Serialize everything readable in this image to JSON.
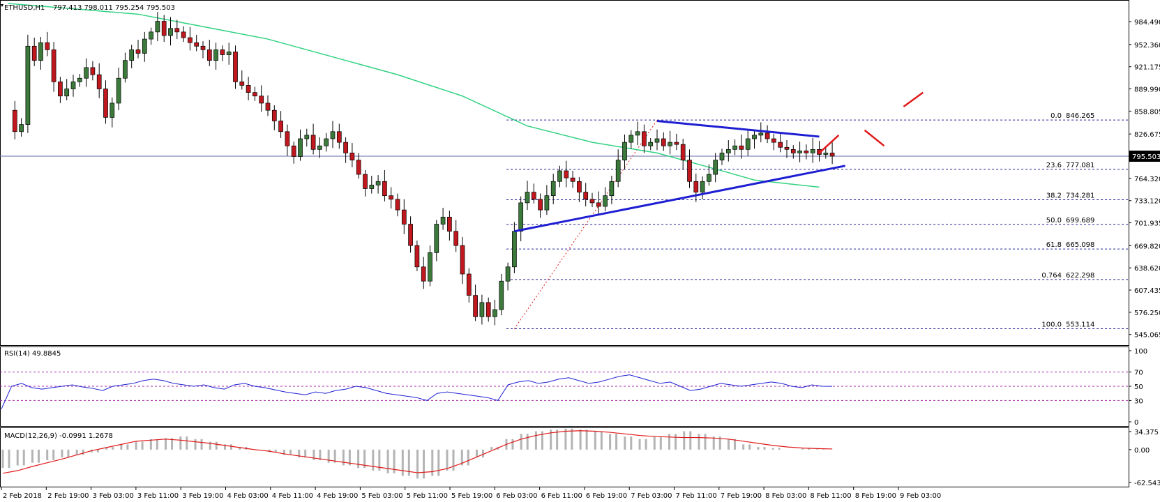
{
  "header": {
    "symbol": "ETHUSD,H1",
    "ohlc": "797.413 798.011 795.254 795.503"
  },
  "price_badge": "795.503",
  "colors": {
    "bull": "#3c7a3c",
    "bear": "#c0181e",
    "ma": "#32d282",
    "trendline": "#1e1ed2",
    "fib": "#1e1e96",
    "projection": "#e01818",
    "rsi_line": "#1e1ed2",
    "rsi_level": "#aa2aaa",
    "macd_hist": "#b4b4b4",
    "macd_signal": "#e01818",
    "grid": "#000000"
  },
  "chart_data": [
    {
      "type": "candlestick",
      "title": "ETHUSD,H1",
      "ylim": [
        535,
        1010
      ],
      "y_ticks": [
        "984.490",
        "952.360",
        "921.175",
        "889.990",
        "858.805",
        "826.675",
        "795.503",
        "764.320",
        "733.120",
        "701.935",
        "669.820",
        "638.620",
        "607.435",
        "576.250",
        "545.065"
      ],
      "x_ticks": [
        "2 Feb 2018",
        "2 Feb 19:00",
        "3 Feb 03:00",
        "3 Feb 11:00",
        "3 Feb 19:00",
        "4 Feb 03:00",
        "4 Feb 11:00",
        "4 Feb 19:00",
        "5 Feb 03:00",
        "5 Feb 11:00",
        "5 Feb 19:00",
        "6 Feb 03:00",
        "6 Feb 11:00",
        "6 Feb 19:00",
        "7 Feb 03:00",
        "7 Feb 11:00",
        "7 Feb 19:00",
        "8 Feb 03:00",
        "8 Feb 11:00",
        "8 Feb 19:00",
        "9 Feb 03:00"
      ],
      "last_price": 795.503,
      "close_path": [
        [
          0,
          860
        ],
        [
          1,
          830
        ],
        [
          2,
          840
        ],
        [
          3,
          950
        ],
        [
          4,
          930
        ],
        [
          5,
          955
        ],
        [
          6,
          945
        ],
        [
          7,
          900
        ],
        [
          8,
          880
        ],
        [
          9,
          890
        ],
        [
          10,
          900
        ],
        [
          11,
          905
        ],
        [
          12,
          920
        ],
        [
          13,
          910
        ],
        [
          14,
          890
        ],
        [
          15,
          850
        ],
        [
          16,
          870
        ],
        [
          17,
          905
        ],
        [
          18,
          930
        ],
        [
          19,
          945
        ],
        [
          20,
          940
        ],
        [
          21,
          960
        ],
        [
          22,
          970
        ],
        [
          23,
          985
        ],
        [
          24,
          965
        ],
        [
          25,
          975
        ],
        [
          26,
          970
        ],
        [
          27,
          962
        ],
        [
          28,
          955
        ],
        [
          29,
          950
        ],
        [
          30,
          945
        ],
        [
          31,
          930
        ],
        [
          32,
          945
        ],
        [
          33,
          938
        ],
        [
          34,
          942
        ],
        [
          35,
          900
        ],
        [
          36,
          895
        ],
        [
          37,
          885
        ],
        [
          38,
          880
        ],
        [
          39,
          870
        ],
        [
          40,
          860
        ],
        [
          41,
          845
        ],
        [
          42,
          830
        ],
        [
          43,
          810
        ],
        [
          44,
          795
        ],
        [
          45,
          820
        ],
        [
          46,
          825
        ],
        [
          47,
          805
        ],
        [
          48,
          810
        ],
        [
          49,
          820
        ],
        [
          50,
          830
        ],
        [
          51,
          815
        ],
        [
          52,
          800
        ],
        [
          53,
          790
        ],
        [
          54,
          770
        ],
        [
          55,
          750
        ],
        [
          56,
          755
        ],
        [
          57,
          760
        ],
        [
          58,
          740
        ],
        [
          59,
          735
        ],
        [
          60,
          720
        ],
        [
          61,
          700
        ],
        [
          62,
          670
        ],
        [
          63,
          640
        ],
        [
          64,
          620
        ],
        [
          65,
          660
        ],
        [
          66,
          700
        ],
        [
          67,
          710
        ],
        [
          68,
          690
        ],
        [
          69,
          670
        ],
        [
          70,
          630
        ],
        [
          71,
          600
        ],
        [
          72,
          570
        ],
        [
          73,
          590
        ],
        [
          74,
          570
        ],
        [
          75,
          580
        ],
        [
          76,
          620
        ],
        [
          77,
          640
        ],
        [
          78,
          690
        ],
        [
          79,
          730
        ],
        [
          80,
          745
        ],
        [
          81,
          735
        ],
        [
          82,
          720
        ],
        [
          83,
          740
        ],
        [
          84,
          760
        ],
        [
          85,
          775
        ],
        [
          86,
          765
        ],
        [
          87,
          760
        ],
        [
          88,
          745
        ],
        [
          89,
          735
        ],
        [
          90,
          730
        ],
        [
          91,
          725
        ],
        [
          92,
          740
        ],
        [
          93,
          760
        ],
        [
          94,
          790
        ],
        [
          95,
          815
        ],
        [
          96,
          825
        ],
        [
          97,
          830
        ],
        [
          98,
          810
        ],
        [
          99,
          815
        ],
        [
          100,
          820
        ],
        [
          101,
          810
        ],
        [
          102,
          815
        ],
        [
          103,
          812
        ],
        [
          104,
          790
        ],
        [
          105,
          760
        ],
        [
          106,
          745
        ],
        [
          107,
          760
        ],
        [
          108,
          770
        ],
        [
          109,
          790
        ],
        [
          110,
          800
        ],
        [
          111,
          805
        ],
        [
          112,
          810
        ],
        [
          113,
          805
        ],
        [
          114,
          820
        ],
        [
          115,
          825
        ],
        [
          116,
          828
        ],
        [
          117,
          820
        ],
        [
          118,
          815
        ],
        [
          119,
          808
        ],
        [
          120,
          805
        ],
        [
          121,
          800
        ],
        [
          122,
          803
        ],
        [
          123,
          800
        ],
        [
          124,
          805
        ],
        [
          125,
          798
        ],
        [
          126,
          800
        ],
        [
          127,
          795.5
        ]
      ],
      "moving_average": [
        [
          0,
          1010
        ],
        [
          20,
          995
        ],
        [
          40,
          960
        ],
        [
          60,
          910
        ],
        [
          70,
          880
        ],
        [
          80,
          838
        ],
        [
          90,
          815
        ],
        [
          100,
          800
        ],
        [
          110,
          775
        ],
        [
          115,
          762
        ],
        [
          125,
          752
        ]
      ],
      "trendlines": [
        {
          "name": "resistance",
          "from": [
            100,
            845
          ],
          "to": [
            125,
            823
          ]
        },
        {
          "name": "support",
          "from": [
            78,
            690
          ],
          "to": [
            129,
            782
          ]
        }
      ],
      "fibonacci": [
        {
          "ratio": "0.0",
          "price": "846.265"
        },
        {
          "ratio": "23.6",
          "price": "777.081"
        },
        {
          "ratio": "38.2",
          "price": "734.281"
        },
        {
          "ratio": "50.0",
          "price": "699.689"
        },
        {
          "ratio": "61.8",
          "price": "665.098"
        },
        {
          "ratio": "0.764",
          "price": "622.298"
        },
        {
          "ratio": "100.0",
          "price": "553.114"
        }
      ],
      "projection_path": [
        [
          125,
          800
        ],
        [
          128,
          825
        ],
        [
          132,
          832
        ],
        [
          135,
          810
        ],
        [
          138,
          865
        ],
        [
          141,
          885
        ]
      ]
    },
    {
      "type": "line",
      "title": "RSI(14) 49.8845",
      "ylim": [
        0,
        100
      ],
      "y_ticks": [
        "100",
        "70",
        "50",
        "30",
        "0"
      ],
      "levels": [
        70,
        50,
        30
      ],
      "values": [
        18,
        50,
        54,
        48,
        46,
        48,
        50,
        52,
        49,
        47,
        44,
        50,
        52,
        54,
        58,
        60,
        58,
        54,
        52,
        50,
        52,
        48,
        46,
        52,
        54,
        50,
        48,
        45,
        42,
        40,
        38,
        42,
        40,
        44,
        46,
        50,
        48,
        44,
        40,
        38,
        36,
        34,
        30,
        40,
        42,
        40,
        38,
        36,
        34,
        30,
        52,
        56,
        58,
        54,
        56,
        60,
        62,
        58,
        54,
        56,
        60,
        64,
        66,
        62,
        58,
        54,
        56,
        50,
        44,
        46,
        50,
        54,
        52,
        50,
        52,
        54,
        56,
        54,
        50,
        48,
        52,
        50,
        49.88
      ]
    },
    {
      "type": "macd",
      "title": "MACD(12,26,9) -0.0991 1.2678",
      "ylim": [
        -62.5438,
        34.375
      ],
      "y_ticks": [
        "34.375",
        "0.00",
        "-62.5438"
      ],
      "histogram": [
        -35,
        -30,
        -25,
        -20,
        -15,
        -10,
        -5,
        5,
        10,
        15,
        20,
        22,
        25,
        20,
        15,
        10,
        5,
        0,
        -5,
        -10,
        -15,
        -20,
        -25,
        -30,
        -35,
        -40,
        -45,
        -50,
        -55,
        -50,
        -40,
        -30,
        -15,
        5,
        20,
        30,
        35,
        38,
        40,
        38,
        35,
        30,
        25,
        20,
        25,
        30,
        35,
        30,
        25,
        20,
        10,
        5,
        3,
        0,
        2,
        1,
        -0.1
      ],
      "signal": [
        -45,
        -40,
        -32,
        -25,
        -18,
        -10,
        -2,
        4,
        10,
        16,
        18,
        20,
        18,
        15,
        12,
        8,
        4,
        0,
        -3,
        -8,
        -12,
        -16,
        -20,
        -24,
        -28,
        -32,
        -36,
        -40,
        -44,
        -42,
        -36,
        -26,
        -14,
        -2,
        10,
        20,
        27,
        32,
        35,
        36,
        35,
        33,
        30,
        27,
        25,
        24,
        23,
        23,
        22,
        20,
        16,
        12,
        8,
        5,
        3,
        2,
        1.27
      ]
    }
  ]
}
